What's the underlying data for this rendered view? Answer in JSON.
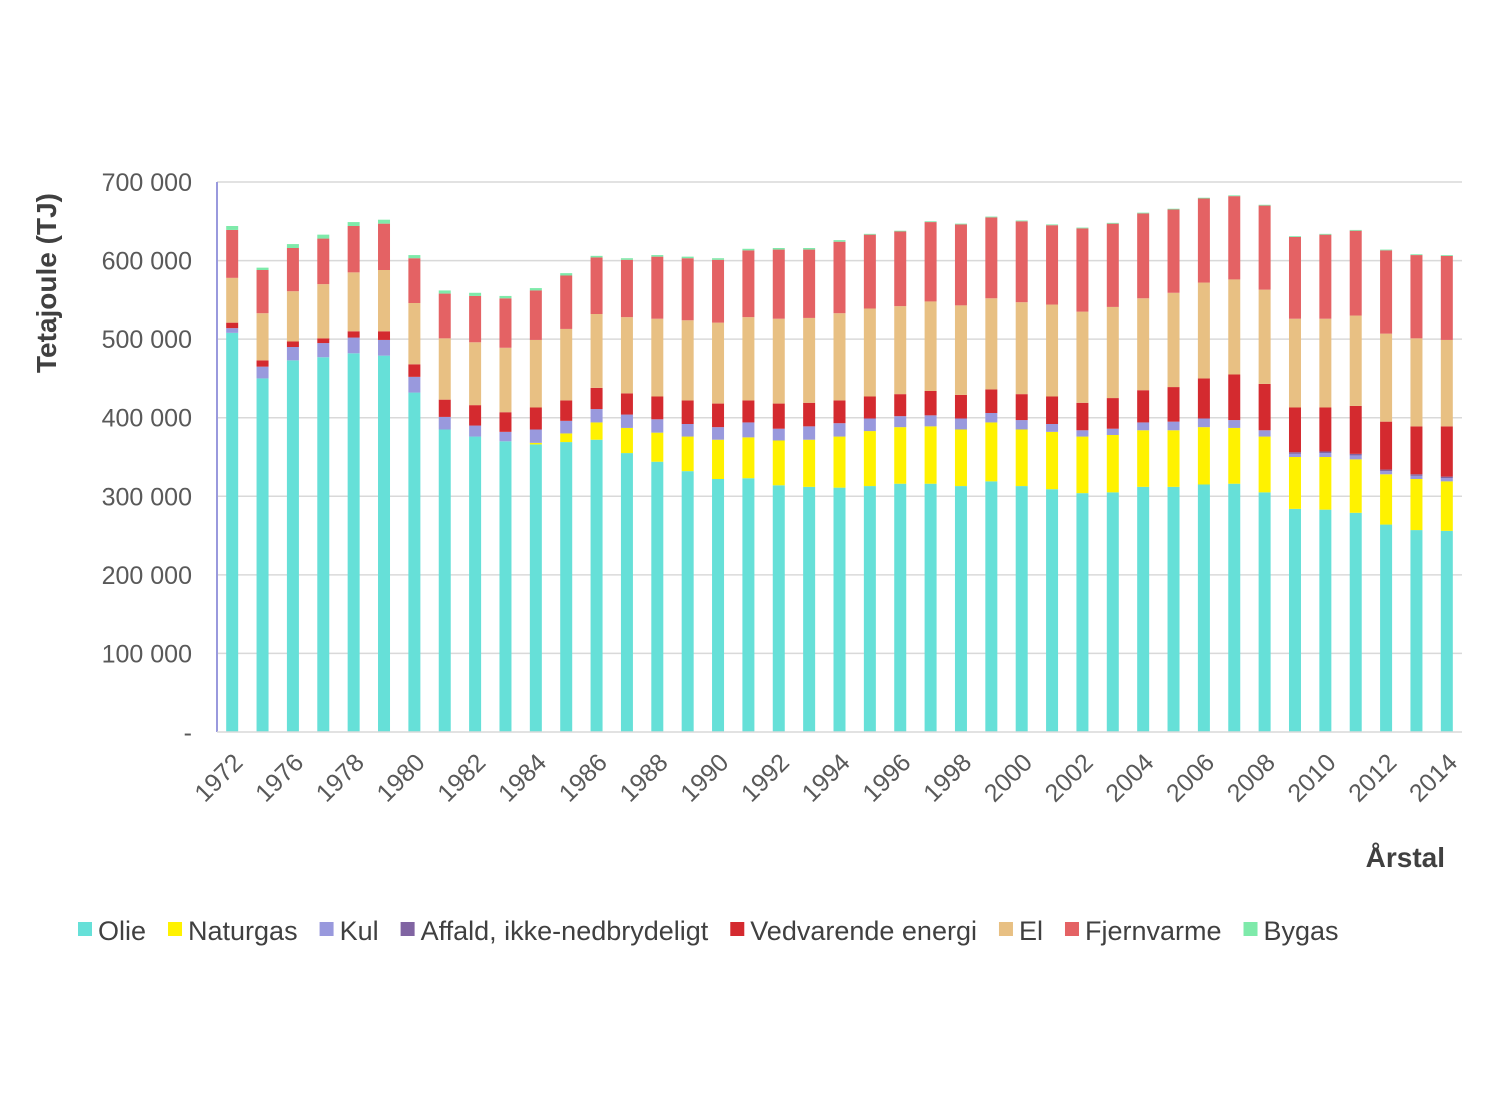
{
  "chart_data": {
    "type": "bar",
    "stacked": true,
    "xlabel": "Årstal",
    "ylabel": "Tetajoule (TJ)",
    "ylim": [
      0,
      700000
    ],
    "y_ticks": [
      {
        "value": 0,
        "label": "-"
      },
      {
        "value": 100000,
        "label": "100 000"
      },
      {
        "value": 200000,
        "label": "200 000"
      },
      {
        "value": 300000,
        "label": "300 000"
      },
      {
        "value": 400000,
        "label": "400 000"
      },
      {
        "value": 500000,
        "label": "500 000"
      },
      {
        "value": 600000,
        "label": "600 000"
      },
      {
        "value": 700000,
        "label": "700 000"
      }
    ],
    "grid": true,
    "legend_position": "bottom",
    "categories": [
      "1972",
      "1975",
      "1976",
      "1977",
      "1978",
      "1979",
      "1980",
      "1981",
      "1982",
      "1983",
      "1984",
      "1985",
      "1986",
      "1987",
      "1988",
      "1989",
      "1990",
      "1991",
      "1992",
      "1993",
      "1994",
      "1995",
      "1996",
      "1997",
      "1998",
      "1999",
      "2000",
      "2001",
      "2002",
      "2003",
      "2004",
      "2005",
      "2006",
      "2007",
      "2008",
      "2009",
      "2010",
      "2011",
      "2012",
      "2013",
      "2014"
    ],
    "x_tick_labels": [
      "1972",
      "1976",
      "1978",
      "1980",
      "1982",
      "1984",
      "1986",
      "1988",
      "1990",
      "1992",
      "1994",
      "1996",
      "1998",
      "2000",
      "2002",
      "2004",
      "2006",
      "2008",
      "2010",
      "2012",
      "2014"
    ],
    "series": [
      {
        "name": "Olie",
        "color": "#66E0D8",
        "values": [
          508000,
          450000,
          473000,
          477000,
          482000,
          479000,
          432000,
          385000,
          376000,
          370000,
          366000,
          369000,
          372000,
          355000,
          344000,
          332000,
          322000,
          323000,
          314000,
          312000,
          311000,
          313000,
          316000,
          316000,
          313000,
          319000,
          313000,
          309000,
          304000,
          305000,
          312000,
          312000,
          315000,
          316000,
          305000,
          284000,
          283000,
          279000,
          264000,
          257000,
          256000
        ]
      },
      {
        "name": "Naturgas",
        "color": "#FFF200",
        "values": [
          0,
          0,
          0,
          0,
          0,
          0,
          0,
          0,
          0,
          0,
          2000,
          11000,
          22000,
          32000,
          37000,
          44000,
          50000,
          52000,
          57000,
          60000,
          65000,
          70000,
          72000,
          73000,
          72000,
          75000,
          72000,
          73000,
          72000,
          73000,
          72000,
          72000,
          73000,
          71000,
          71000,
          66000,
          67000,
          68000,
          64000,
          65000,
          63000
        ]
      },
      {
        "name": "Kul",
        "color": "#9999DD",
        "values": [
          6000,
          15000,
          17000,
          18000,
          20000,
          20000,
          20000,
          16000,
          14000,
          12000,
          17000,
          16000,
          17000,
          17000,
          17000,
          16000,
          16000,
          19000,
          15000,
          17000,
          17000,
          16000,
          14000,
          14000,
          14000,
          12000,
          12000,
          10000,
          8000,
          8000,
          10000,
          11000,
          11000,
          10000,
          8000,
          4000,
          5000,
          5000,
          4000,
          4000,
          4000
        ]
      },
      {
        "name": "Affald, ikke-nedbrydeligt",
        "color": "#8064A2",
        "values": [
          0,
          0,
          0,
          0,
          0,
          0,
          0,
          0,
          0,
          0,
          0,
          0,
          0,
          0,
          0,
          0,
          0,
          0,
          0,
          0,
          0,
          0,
          0,
          0,
          0,
          0,
          0,
          0,
          0,
          0,
          0,
          0,
          0,
          0,
          0,
          2000,
          2000,
          2000,
          2000,
          2000,
          2000
        ]
      },
      {
        "name": "Vedvarende energi",
        "color": "#D42A2F",
        "values": [
          7000,
          8000,
          7000,
          6000,
          8000,
          11000,
          16000,
          22000,
          26000,
          25000,
          28000,
          26000,
          27000,
          27000,
          29000,
          30000,
          30000,
          28000,
          32000,
          30000,
          29000,
          28000,
          28000,
          31000,
          30000,
          30000,
          33000,
          35000,
          35000,
          39000,
          41000,
          44000,
          51000,
          58000,
          59000,
          57000,
          56000,
          61000,
          61000,
          61000,
          64000
        ]
      },
      {
        "name": "El",
        "color": "#E8C083",
        "values": [
          57000,
          60000,
          64000,
          69000,
          75000,
          78000,
          78000,
          78000,
          80000,
          82000,
          86000,
          91000,
          94000,
          97000,
          99000,
          102000,
          103000,
          106000,
          108000,
          108000,
          111000,
          112000,
          112000,
          114000,
          114000,
          116000,
          117000,
          117000,
          116000,
          116000,
          117000,
          120000,
          122000,
          121000,
          120000,
          113000,
          113000,
          115000,
          112000,
          112000,
          110000
        ]
      },
      {
        "name": "Fjernvarme",
        "color": "#E46264",
        "values": [
          61000,
          55000,
          55000,
          58000,
          59000,
          59000,
          57000,
          57000,
          59000,
          63000,
          63000,
          68000,
          72000,
          73000,
          79000,
          79000,
          80000,
          85000,
          88000,
          87000,
          91000,
          94000,
          95000,
          101000,
          103000,
          103000,
          103000,
          101000,
          106000,
          106000,
          108000,
          106000,
          107000,
          106000,
          107000,
          104000,
          107000,
          108000,
          106000,
          106000,
          107000
        ]
      },
      {
        "name": "Bygas",
        "color": "#7EEAAA",
        "values": [
          5000,
          3000,
          5000,
          5000,
          5000,
          5000,
          4000,
          4000,
          4000,
          3000,
          3000,
          3000,
          2000,
          2000,
          2000,
          2000,
          2000,
          2000,
          2000,
          2000,
          2000,
          1000,
          1000,
          1000,
          1000,
          1000,
          1000,
          1000,
          1000,
          1000,
          1000,
          1000,
          1000,
          1000,
          1000,
          1000,
          1000,
          1000,
          1000,
          1000,
          1000
        ]
      }
    ]
  }
}
